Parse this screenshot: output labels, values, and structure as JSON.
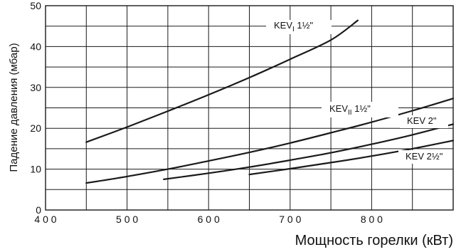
{
  "chart_data": {
    "type": "line",
    "title": "",
    "xlabel": "Мощность горелки (кВт)",
    "ylabel": "Падение давления (мбар)",
    "xlim": [
      400,
      900
    ],
    "ylim": [
      0,
      50
    ],
    "x_major_step": 50,
    "y_minor_step": 5,
    "x_tick_values": [
      400,
      500,
      600,
      700,
      800
    ],
    "x_tick_labels": [
      "4 0 0",
      "5 0 0",
      "6 0 0",
      "7 0 0",
      "8 0 0"
    ],
    "y_tick_values": [
      0,
      10,
      20,
      30,
      40,
      50
    ],
    "y_tick_labels": [
      "0",
      "10",
      "20",
      "30",
      "40",
      "50"
    ],
    "grid": true,
    "legend": "inline labels",
    "series": [
      {
        "name": "KEV1 1½\"",
        "label_main": "KEV",
        "label_sub": "I",
        "label_suffix": " 1½\"",
        "points": [
          [
            450,
            16.6
          ],
          [
            500,
            20.3
          ],
          [
            550,
            24.2
          ],
          [
            600,
            28.2
          ],
          [
            650,
            32.4
          ],
          [
            700,
            36.9
          ],
          [
            750,
            41.6
          ],
          [
            783,
            46.4
          ]
        ]
      },
      {
        "name": "KEV11 1½\"",
        "label_main": "KEV",
        "label_sub": "II",
        "label_suffix": " 1½\"",
        "points": [
          [
            450,
            6.6
          ],
          [
            500,
            8.2
          ],
          [
            550,
            10.0
          ],
          [
            600,
            12.0
          ],
          [
            650,
            14.1
          ],
          [
            700,
            16.4
          ],
          [
            750,
            18.9
          ],
          [
            800,
            21.5
          ],
          [
            850,
            24.3
          ],
          [
            900,
            27.3
          ]
        ]
      },
      {
        "name": "KEV 2\"",
        "label_main": "KEV 2\"",
        "label_sub": "",
        "label_suffix": "",
        "points": [
          [
            545,
            7.5
          ],
          [
            600,
            9.0
          ],
          [
            650,
            10.5
          ],
          [
            700,
            12.2
          ],
          [
            750,
            14.0
          ],
          [
            800,
            16.1
          ],
          [
            850,
            18.4
          ],
          [
            900,
            21.0
          ]
        ]
      },
      {
        "name": "KEV 2½\"",
        "label_main": "KEV 2½\"",
        "label_sub": "",
        "label_suffix": "",
        "points": [
          [
            650,
            8.7
          ],
          [
            700,
            10.1
          ],
          [
            750,
            11.6
          ],
          [
            800,
            13.2
          ],
          [
            850,
            15.0
          ],
          [
            900,
            17.0
          ]
        ]
      }
    ]
  }
}
